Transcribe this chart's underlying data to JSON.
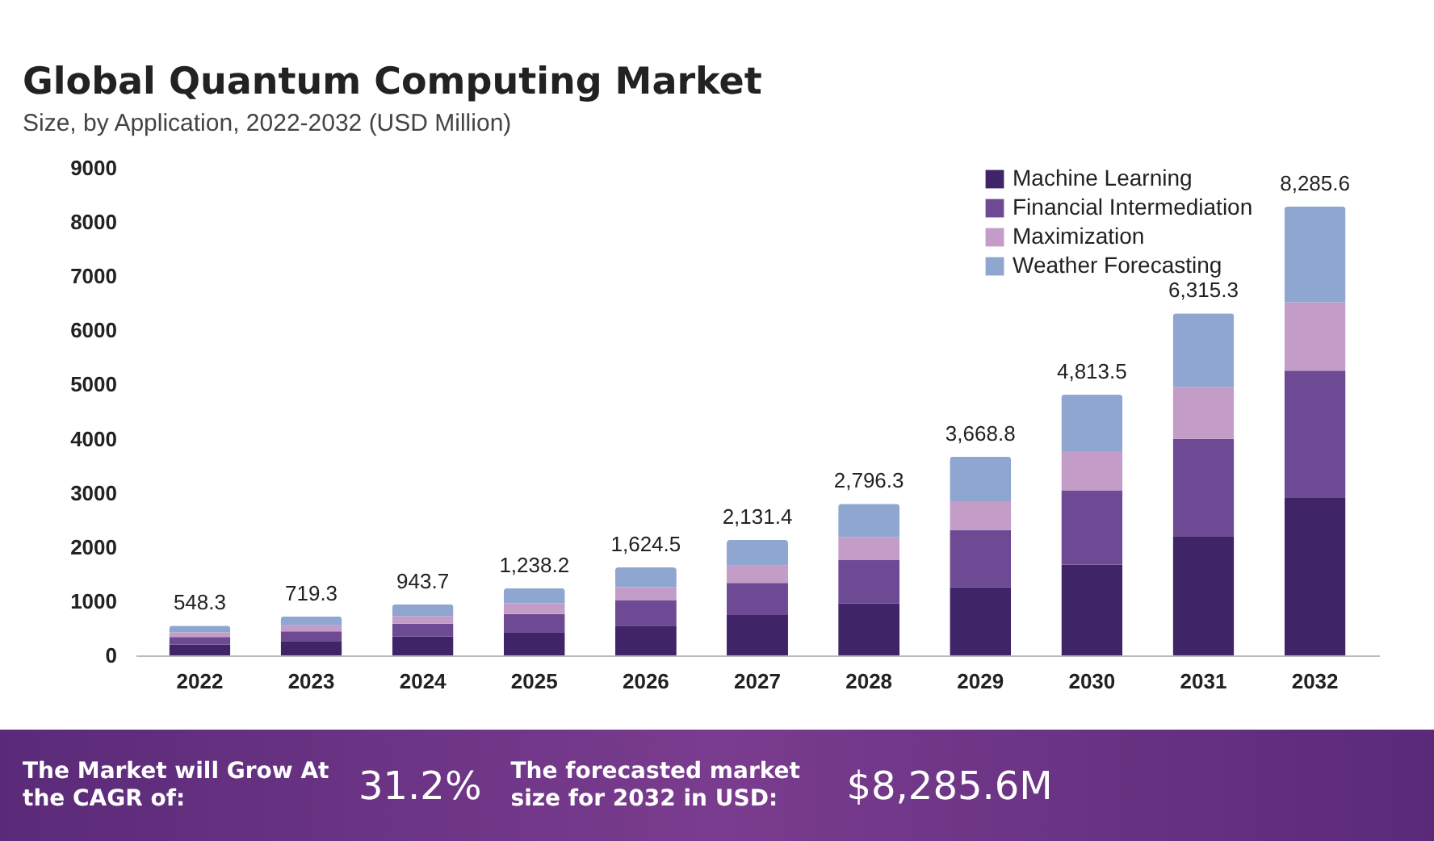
{
  "chart_data": {
    "type": "bar",
    "title": "Global Quantum Computing Market",
    "subtitle": "Size, by Application, 2022-2032 (USD Million)",
    "categories": [
      "2022",
      "2023",
      "2024",
      "2025",
      "2026",
      "2027",
      "2028",
      "2029",
      "2030",
      "2031",
      "2032"
    ],
    "series": [
      {
        "name": "Machine Learning",
        "color": "#3f2468",
        "values": [
          200,
          265,
          347,
          427,
          546,
          744,
          962,
          1260,
          1677,
          2202,
          2907
        ]
      },
      {
        "name": "Financial Intermediation",
        "color": "#6e4a94",
        "values": [
          140,
          180,
          238,
          337,
          476,
          595,
          804,
          1052,
          1369,
          1796,
          2351
        ]
      },
      {
        "name": "Maximization",
        "color": "#c39cc8",
        "values": [
          85,
          110,
          139,
          198,
          238,
          318,
          417,
          535,
          724,
          962,
          1260
        ]
      },
      {
        "name": "Weather Forecasting",
        "color": "#8fa6d0",
        "values": [
          123.3,
          164.3,
          219.7,
          276.2,
          364.5,
          474.4,
          613.3,
          821.8,
          1043.5,
          1355.3,
          1767.6
        ]
      }
    ],
    "stacked": true,
    "totals": [
      "548.3",
      "719.3",
      "943.7",
      "1,238.2",
      "1,624.5",
      "2,131.4",
      "2,796.3",
      "3,668.8",
      "4,813.5",
      "6,315.3",
      "8,285.6"
    ],
    "ylim": [
      0,
      9000
    ],
    "yticks": [
      0,
      1000,
      2000,
      3000,
      4000,
      5000,
      6000,
      7000,
      8000,
      9000
    ],
    "grid": false,
    "legend": "top right",
    "annotations": [
      "The Market will Grow At the CAGR of:",
      "31.2%",
      "The forecasted market size for 2032 in USD:",
      "$8,285.6M"
    ]
  }
}
